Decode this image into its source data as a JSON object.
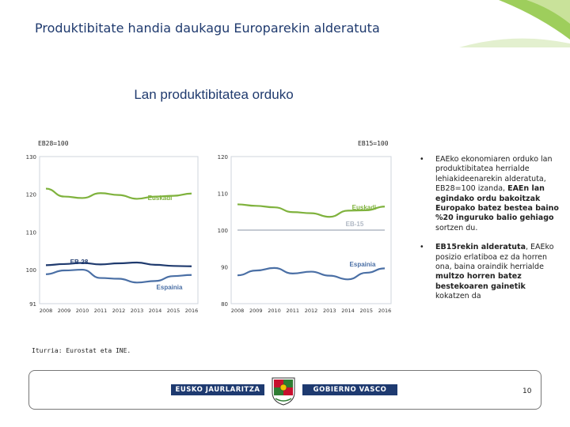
{
  "header": {
    "title": "Produktibitate handia daukagu Europarekin alderatuta",
    "subtitle": "Lan produktibitatea orduko"
  },
  "colors": {
    "euskadi": "#7fb23d",
    "espainia": "#4a6fa5",
    "eb": "#1f3a6e",
    "accent_green": "#8dc63f"
  },
  "chart_data": [
    {
      "type": "line",
      "index_label": "EB28=100",
      "x": [
        "2008",
        "2009",
        "2010",
        "2011",
        "2012",
        "2013",
        "2014",
        "2015",
        "2016"
      ],
      "ylim": [
        91,
        130
      ],
      "yticks": [
        "130",
        "120",
        "110",
        "100",
        "91"
      ],
      "grid": false,
      "series": [
        {
          "name": "Euskadi",
          "values": [
            121.5,
            119.4,
            119.0,
            120.3,
            119.8,
            118.8,
            119.4,
            119.6,
            120.2
          ]
        },
        {
          "name": "EB-28",
          "values": [
            101.2,
            101.5,
            101.8,
            101.4,
            101.7,
            101.9,
            101.3,
            101.0,
            100.9
          ]
        },
        {
          "name": "Espainia",
          "values": [
            98.8,
            99.8,
            100.0,
            97.8,
            97.6,
            96.6,
            97.0,
            98.3,
            98.6
          ]
        }
      ]
    },
    {
      "type": "line",
      "index_label": "EB15=100",
      "x": [
        "2008",
        "2009",
        "2010",
        "2011",
        "2012",
        "2013",
        "2014",
        "2015",
        "2016"
      ],
      "ylim": [
        80,
        120
      ],
      "yticks": [
        "120",
        "110",
        "100",
        "90",
        "80"
      ],
      "grid": false,
      "series": [
        {
          "name": "Euskadi",
          "values": [
            107.0,
            106.6,
            106.2,
            104.9,
            104.6,
            103.6,
            105.3,
            105.4,
            106.4
          ]
        },
        {
          "name": "EB-15",
          "values": [
            100,
            100,
            100,
            100,
            100,
            100,
            100,
            100,
            100
          ]
        },
        {
          "name": "Espainia",
          "values": [
            87.7,
            89.0,
            89.7,
            88.2,
            88.7,
            87.6,
            86.6,
            88.4,
            89.6
          ]
        }
      ]
    }
  ],
  "bullets": [
    {
      "parts": [
        {
          "text": "EAEko ekonomiaren orduko lan produktibitatea herrialde lehiakideenarekin alderatuta, EB28=100 izanda, ",
          "bold": false
        },
        {
          "text": "EAEn lan egindako ordu bakoitzak Europako batez bestea baino %20 inguruko balio gehiago",
          "bold": true
        },
        {
          "text": " sortzen du.",
          "bold": false
        }
      ]
    },
    {
      "parts": [
        {
          "text": "EB15rekin alderatuta",
          "bold": true
        },
        {
          "text": ", EAEko posizio erlatiboa ez da horren ona, baina oraindik herrialde ",
          "bold": false
        },
        {
          "text": "multzo horren batez bestekoaren gainetik",
          "bold": true
        },
        {
          "text": " kokatzen da",
          "bold": false
        }
      ]
    }
  ],
  "footer": {
    "source": "Iturria: Eurostat eta INE.",
    "logo_left": "EUSKO JAURLARITZA",
    "logo_right": "GOBIERNO VASCO",
    "page_number": "10"
  }
}
